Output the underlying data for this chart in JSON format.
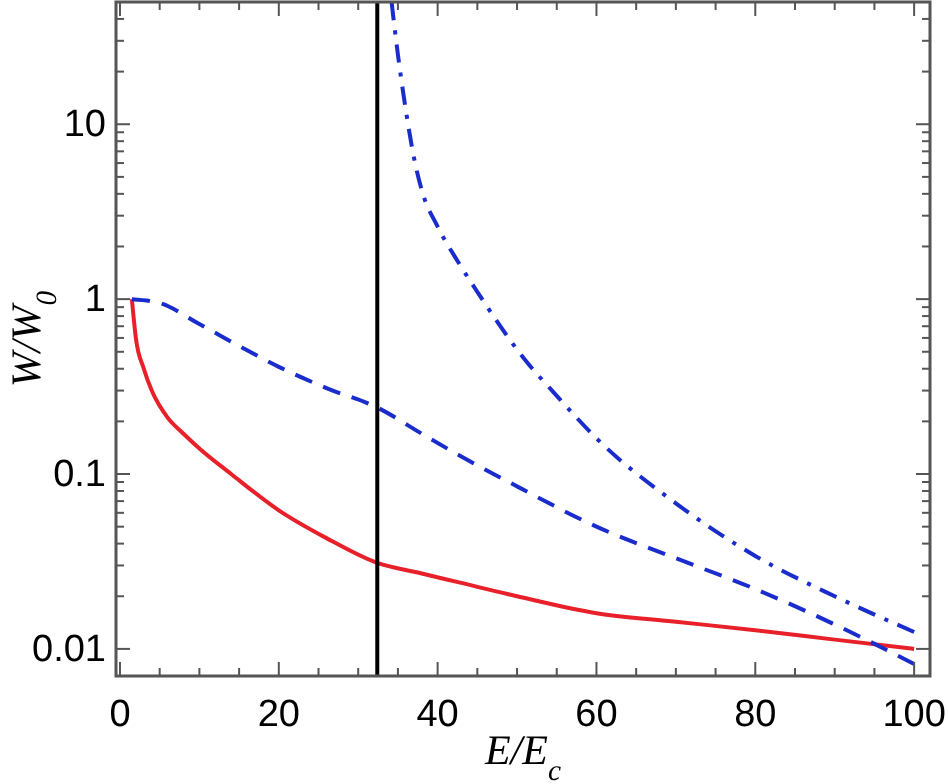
{
  "chart_data": {
    "type": "line",
    "xlabel": "E/E$_{c}$",
    "ylabel": "W/W$_{0}$",
    "log": "y",
    "grid": false,
    "xlim": [
      -0.5,
      102
    ],
    "ylim": [
      0.007,
      50
    ],
    "xticks": [
      0,
      {
        "value": 5,
        "label": null
      },
      {
        "value": 10,
        "label": null
      },
      {
        "value": 15,
        "label": null
      },
      20,
      {
        "value": 25,
        "label": null
      },
      {
        "value": 30,
        "label": null
      },
      {
        "value": 35,
        "label": null
      },
      40,
      {
        "value": 45,
        "label": null
      },
      {
        "value": 50,
        "label": null
      },
      {
        "value": 55,
        "label": null
      },
      60,
      {
        "value": 65,
        "label": null
      },
      {
        "value": 70,
        "label": null
      },
      {
        "value": 75,
        "label": null
      },
      80,
      {
        "value": 85,
        "label": null
      },
      {
        "value": 90,
        "label": null
      },
      {
        "value": 95,
        "label": null
      },
      100
    ],
    "yticks": [
      {
        "value": 0.01,
        "label": "0.01"
      },
      {
        "value": 0.02,
        "label": null
      },
      {
        "value": 0.03,
        "label": null
      },
      {
        "value": 0.04,
        "label": null
      },
      {
        "value": 0.05,
        "label": null
      },
      {
        "value": 0.06,
        "label": null
      },
      {
        "value": 0.07,
        "label": null
      },
      {
        "value": 0.08,
        "label": null
      },
      {
        "value": 0.09,
        "label": null
      },
      {
        "value": 0.1,
        "label": "0.1"
      },
      {
        "value": 0.2,
        "label": null
      },
      {
        "value": 0.3,
        "label": null
      },
      {
        "value": 0.4,
        "label": null
      },
      {
        "value": 0.5,
        "label": null
      },
      {
        "value": 0.6,
        "label": null
      },
      {
        "value": 0.7,
        "label": null
      },
      {
        "value": 0.8,
        "label": null
      },
      {
        "value": 0.9,
        "label": null
      },
      1,
      {
        "value": 2,
        "label": null
      },
      {
        "value": 3,
        "label": null
      },
      {
        "value": 4,
        "label": null
      },
      {
        "value": 5,
        "label": null
      },
      {
        "value": 6,
        "label": null
      },
      {
        "value": 7,
        "label": null
      },
      {
        "value": 8,
        "label": null
      },
      {
        "value": 9,
        "label": null
      },
      10,
      {
        "value": 20,
        "label": null
      },
      {
        "value": 30,
        "label": null
      },
      {
        "value": 40,
        "label": null
      },
      {
        "value": 50,
        "label": null
      }
    ],
    "ref_lines": [
      {
        "axis": "x",
        "value": 32.4,
        "color": "#000000"
      }
    ],
    "series": [
      {
        "color": "#e8202a",
        "line_style": "solid",
        "x": [
          1.5,
          2,
          3,
          4,
          6,
          8,
          10,
          14,
          20,
          26,
          32.4,
          38,
          42.7,
          50,
          60,
          70,
          80,
          90,
          100
        ],
        "values": [
          1,
          0.6,
          0.4,
          0.3,
          0.21,
          0.17,
          0.14,
          0.1,
          0.062,
          0.043,
          0.031,
          0.027,
          0.024,
          0.02,
          0.016,
          0.0143,
          0.0128,
          0.0113,
          0.01
        ]
      },
      {
        "color": "#1a2ccc",
        "line_style": "dashed",
        "x": [
          1.5,
          5,
          10,
          15,
          20,
          26,
          32.4,
          38,
          42.7,
          50,
          60,
          70,
          80,
          90,
          100
        ],
        "values": [
          1,
          0.95,
          0.72,
          0.54,
          0.41,
          0.31,
          0.24,
          0.17,
          0.128,
          0.085,
          0.05,
          0.033,
          0.022,
          0.0138,
          0.0082
        ]
      },
      {
        "color": "#1a2ccc",
        "line_style": "dashdot",
        "x": [
          34.2,
          35,
          36,
          37,
          38,
          40,
          42.7,
          45,
          51,
          55,
          60,
          70,
          80,
          90,
          100
        ],
        "values": [
          50,
          25,
          12,
          6.5,
          4.2,
          2.6,
          1.6,
          1.1,
          0.45,
          0.28,
          0.16,
          0.068,
          0.034,
          0.02,
          0.0125
        ]
      }
    ]
  }
}
